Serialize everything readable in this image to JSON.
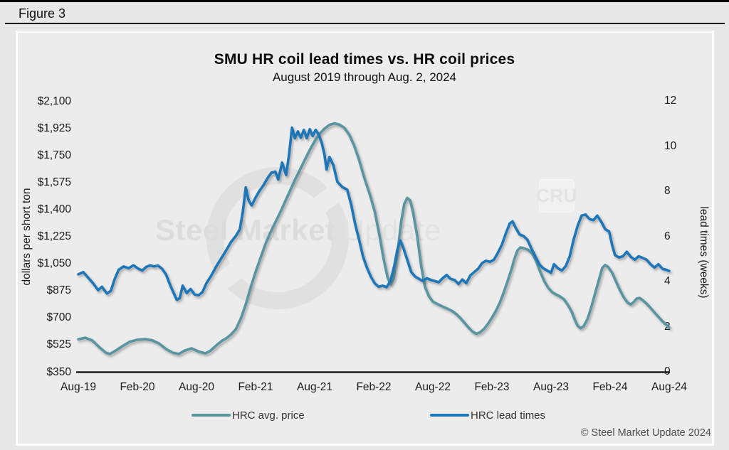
{
  "figure_label": "Figure 3",
  "title": "SMU HR coil lead times vs. HR coil prices",
  "subtitle": "August 2019 through Aug. 2, 2024",
  "copyright": "© Steel Market Update 2024",
  "watermark": {
    "part1": "Steel Market",
    "part2": "Update",
    "badge": "CRU"
  },
  "colors": {
    "price_line": "#5995a1",
    "lead_line": "#1d76b8",
    "axis_line": "#1a1a1a"
  },
  "chart_data": {
    "type": "line",
    "title": "SMU HR coil lead times vs. HR coil prices",
    "subtitle": "August 2019 through Aug. 2, 2024",
    "grid": false,
    "legend_position": "bottom",
    "x_axis": {
      "tick_labels": [
        "Aug-19",
        "Feb-20",
        "Aug-20",
        "Feb-21",
        "Aug-21",
        "Feb-22",
        "Aug-22",
        "Feb-23",
        "Aug-23",
        "Feb-24",
        "Aug-24"
      ],
      "unit": "month index from Aug-2019",
      "range": [
        0,
        60
      ]
    },
    "y_left": {
      "label": "dollars per short ton",
      "tick_labels": [
        "$2,100",
        "$1,925",
        "$1,750",
        "$1,575",
        "$1,400",
        "$1,225",
        "$1,050",
        "$875",
        "$700",
        "$525",
        "$350"
      ],
      "min": 350,
      "max": 2100
    },
    "y_right": {
      "label": "lead times (weeks)",
      "tick_labels": [
        "12",
        "10",
        "8",
        "6",
        "4",
        "2",
        "0"
      ],
      "min": 0,
      "max": 12
    },
    "legend": [
      {
        "name": "HRC avg. price",
        "color": "#5995a1",
        "axis": "left"
      },
      {
        "name": "HRC lead times",
        "color": "#1d76b8",
        "axis": "right"
      }
    ],
    "series": [
      {
        "name": "HRC avg. price",
        "axis": "left",
        "unit": "USD per short ton",
        "points": [
          [
            0,
            565
          ],
          [
            0.7,
            575
          ],
          [
            1.4,
            558
          ],
          [
            2.1,
            515
          ],
          [
            2.8,
            478
          ],
          [
            3.2,
            470
          ],
          [
            3.8,
            492
          ],
          [
            4.5,
            522
          ],
          [
            5.2,
            548
          ],
          [
            6,
            562
          ],
          [
            6.8,
            566
          ],
          [
            7.5,
            558
          ],
          [
            8.2,
            538
          ],
          [
            8.9,
            502
          ],
          [
            9.6,
            478
          ],
          [
            10.2,
            470
          ],
          [
            10.8,
            492
          ],
          [
            11.5,
            506
          ],
          [
            12.2,
            486
          ],
          [
            12.9,
            474
          ],
          [
            13.4,
            490
          ],
          [
            14,
            525
          ],
          [
            14.6,
            556
          ],
          [
            15,
            570
          ],
          [
            15.5,
            595
          ],
          [
            16,
            630
          ],
          [
            16.5,
            700
          ],
          [
            17,
            790
          ],
          [
            17.5,
            900
          ],
          [
            18,
            1000
          ],
          [
            18.5,
            1090
          ],
          [
            19,
            1180
          ],
          [
            19.5,
            1255
          ],
          [
            20,
            1320
          ],
          [
            20.5,
            1385
          ],
          [
            21,
            1455
          ],
          [
            21.5,
            1525
          ],
          [
            22,
            1595
          ],
          [
            22.5,
            1660
          ],
          [
            23,
            1725
          ],
          [
            23.5,
            1788
          ],
          [
            24,
            1845
          ],
          [
            24.5,
            1892
          ],
          [
            25,
            1926
          ],
          [
            25.5,
            1950
          ],
          [
            26,
            1960
          ],
          [
            26.5,
            1952
          ],
          [
            27,
            1932
          ],
          [
            27.5,
            1888
          ],
          [
            28,
            1818
          ],
          [
            28.5,
            1725
          ],
          [
            29,
            1615
          ],
          [
            29.6,
            1500
          ],
          [
            30.1,
            1390
          ],
          [
            30.6,
            1230
          ],
          [
            31,
            1085
          ],
          [
            31.4,
            965
          ],
          [
            31.7,
            920
          ],
          [
            32,
            955
          ],
          [
            32.4,
            1120
          ],
          [
            32.8,
            1330
          ],
          [
            33.1,
            1440
          ],
          [
            33.4,
            1478
          ],
          [
            33.7,
            1462
          ],
          [
            34,
            1382
          ],
          [
            34.4,
            1235
          ],
          [
            34.8,
            1045
          ],
          [
            35.2,
            905
          ],
          [
            35.6,
            842
          ],
          [
            36,
            808
          ],
          [
            36.5,
            792
          ],
          [
            37,
            776
          ],
          [
            37.5,
            762
          ],
          [
            38,
            746
          ],
          [
            38.4,
            726
          ],
          [
            38.8,
            702
          ],
          [
            39.2,
            672
          ],
          [
            39.6,
            642
          ],
          [
            40,
            616
          ],
          [
            40.4,
            601
          ],
          [
            40.8,
            610
          ],
          [
            41.2,
            632
          ],
          [
            41.6,
            665
          ],
          [
            42,
            705
          ],
          [
            42.4,
            748
          ],
          [
            42.8,
            802
          ],
          [
            43.2,
            868
          ],
          [
            43.6,
            942
          ],
          [
            44,
            1022
          ],
          [
            44.3,
            1088
          ],
          [
            44.6,
            1140
          ],
          [
            44.9,
            1158
          ],
          [
            45.3,
            1152
          ],
          [
            45.7,
            1142
          ],
          [
            46.1,
            1118
          ],
          [
            46.5,
            1068
          ],
          [
            46.9,
            1002
          ],
          [
            47.3,
            942
          ],
          [
            47.7,
            898
          ],
          [
            48.1,
            870
          ],
          [
            48.5,
            855
          ],
          [
            48.9,
            842
          ],
          [
            49.3,
            824
          ],
          [
            49.7,
            788
          ],
          [
            50.1,
            742
          ],
          [
            50.4,
            692
          ],
          [
            50.7,
            652
          ],
          [
            51,
            636
          ],
          [
            51.3,
            648
          ],
          [
            51.7,
            695
          ],
          [
            52.1,
            775
          ],
          [
            52.5,
            868
          ],
          [
            52.9,
            958
          ],
          [
            53.2,
            1025
          ],
          [
            53.5,
            1045
          ],
          [
            53.8,
            1032
          ],
          [
            54.2,
            995
          ],
          [
            54.6,
            938
          ],
          [
            55,
            882
          ],
          [
            55.4,
            833
          ],
          [
            55.8,
            800
          ],
          [
            56.1,
            790
          ],
          [
            56.4,
            806
          ],
          [
            56.7,
            828
          ],
          [
            57,
            832
          ],
          [
            57.3,
            818
          ],
          [
            57.7,
            795
          ],
          [
            58.1,
            768
          ],
          [
            58.5,
            738
          ],
          [
            58.9,
            710
          ],
          [
            59.3,
            682
          ],
          [
            59.7,
            658
          ],
          [
            60,
            640
          ]
        ]
      },
      {
        "name": "HRC lead times",
        "axis": "right",
        "unit": "weeks",
        "points": [
          [
            0,
            4.35
          ],
          [
            0.5,
            4.45
          ],
          [
            1,
            4.2
          ],
          [
            1.5,
            3.95
          ],
          [
            2,
            3.65
          ],
          [
            2.4,
            3.8
          ],
          [
            2.9,
            3.5
          ],
          [
            3.3,
            3.62
          ],
          [
            3.7,
            4.15
          ],
          [
            4.1,
            4.55
          ],
          [
            4.6,
            4.7
          ],
          [
            5.1,
            4.62
          ],
          [
            5.6,
            4.75
          ],
          [
            6.1,
            4.6
          ],
          [
            6.5,
            4.52
          ],
          [
            6.9,
            4.68
          ],
          [
            7.3,
            4.75
          ],
          [
            7.7,
            4.7
          ],
          [
            8.1,
            4.74
          ],
          [
            8.5,
            4.6
          ],
          [
            8.9,
            4.35
          ],
          [
            9.3,
            3.9
          ],
          [
            9.7,
            3.5
          ],
          [
            10,
            3.22
          ],
          [
            10.3,
            3.3
          ],
          [
            10.6,
            3.85
          ],
          [
            11,
            3.52
          ],
          [
            11.4,
            3.7
          ],
          [
            11.8,
            3.46
          ],
          [
            12.2,
            3.42
          ],
          [
            12.6,
            3.56
          ],
          [
            13,
            3.95
          ],
          [
            13.5,
            4.3
          ],
          [
            14,
            4.7
          ],
          [
            14.5,
            5.05
          ],
          [
            15,
            5.4
          ],
          [
            15.5,
            5.78
          ],
          [
            16,
            6.05
          ],
          [
            16.4,
            6.35
          ],
          [
            16.7,
            7.1
          ],
          [
            17,
            8.2
          ],
          [
            17.3,
            7.62
          ],
          [
            17.6,
            7.4
          ],
          [
            18,
            7.75
          ],
          [
            18.4,
            8.05
          ],
          [
            18.8,
            8.3
          ],
          [
            19.2,
            8.6
          ],
          [
            19.6,
            8.85
          ],
          [
            20,
            8.9
          ],
          [
            20.3,
            8.55
          ],
          [
            20.7,
            9.3
          ],
          [
            21.1,
            8.75
          ],
          [
            21.4,
            9.65
          ],
          [
            21.7,
            10.85
          ],
          [
            22,
            10.38
          ],
          [
            22.3,
            10.68
          ],
          [
            22.6,
            10.4
          ],
          [
            22.9,
            10.75
          ],
          [
            23.2,
            10.38
          ],
          [
            23.5,
            10.78
          ],
          [
            23.8,
            10.48
          ],
          [
            24.1,
            10.75
          ],
          [
            24.4,
            10.55
          ],
          [
            24.7,
            10.2
          ],
          [
            25,
            9.65
          ],
          [
            25.2,
            9.0
          ],
          [
            25.5,
            9.55
          ],
          [
            25.9,
            9.18
          ],
          [
            26.3,
            8.45
          ],
          [
            26.8,
            8.22
          ],
          [
            27.3,
            8.1
          ],
          [
            27.7,
            7.45
          ],
          [
            28.1,
            6.6
          ],
          [
            28.5,
            5.9
          ],
          [
            28.9,
            5.15
          ],
          [
            29.3,
            4.65
          ],
          [
            29.7,
            4.25
          ],
          [
            30.1,
            3.95
          ],
          [
            30.5,
            3.8
          ],
          [
            30.9,
            3.85
          ],
          [
            31.3,
            3.78
          ],
          [
            31.7,
            4.05
          ],
          [
            32.1,
            4.75
          ],
          [
            32.4,
            5.45
          ],
          [
            32.7,
            5.85
          ],
          [
            33,
            5.52
          ],
          [
            33.4,
            5.0
          ],
          [
            33.8,
            4.45
          ],
          [
            34.2,
            4.25
          ],
          [
            34.6,
            4.15
          ],
          [
            35,
            4.05
          ],
          [
            35.4,
            4.18
          ],
          [
            35.8,
            4.1
          ],
          [
            36.2,
            4.05
          ],
          [
            36.6,
            4.0
          ],
          [
            37,
            4.18
          ],
          [
            37.4,
            4.32
          ],
          [
            37.8,
            4.15
          ],
          [
            38.2,
            4.1
          ],
          [
            38.6,
            3.92
          ],
          [
            39,
            4.12
          ],
          [
            39.4,
            3.96
          ],
          [
            39.8,
            4.3
          ],
          [
            40.2,
            4.45
          ],
          [
            40.6,
            4.6
          ],
          [
            41,
            4.85
          ],
          [
            41.4,
            4.95
          ],
          [
            41.8,
            4.9
          ],
          [
            42.2,
            5.0
          ],
          [
            42.6,
            5.3
          ],
          [
            43,
            5.65
          ],
          [
            43.4,
            6.15
          ],
          [
            43.8,
            6.6
          ],
          [
            44.1,
            6.7
          ],
          [
            44.4,
            6.42
          ],
          [
            44.8,
            6.12
          ],
          [
            45.2,
            6.05
          ],
          [
            45.6,
            5.88
          ],
          [
            46,
            5.5
          ],
          [
            46.4,
            5.15
          ],
          [
            46.8,
            4.8
          ],
          [
            47.2,
            4.62
          ],
          [
            47.6,
            4.52
          ],
          [
            48,
            4.42
          ],
          [
            48.3,
            4.8
          ],
          [
            48.7,
            4.62
          ],
          [
            49.1,
            4.52
          ],
          [
            49.5,
            4.72
          ],
          [
            49.9,
            5.15
          ],
          [
            50.3,
            5.9
          ],
          [
            50.7,
            6.5
          ],
          [
            51.1,
            6.95
          ],
          [
            51.5,
            7.0
          ],
          [
            51.9,
            6.8
          ],
          [
            52.3,
            6.75
          ],
          [
            52.7,
            6.95
          ],
          [
            53.1,
            6.68
          ],
          [
            53.5,
            6.35
          ],
          [
            53.9,
            6.25
          ],
          [
            54.2,
            5.65
          ],
          [
            54.5,
            5.2
          ],
          [
            54.9,
            5.1
          ],
          [
            55.3,
            5.15
          ],
          [
            55.7,
            5.35
          ],
          [
            56.1,
            5.12
          ],
          [
            56.5,
            5.0
          ],
          [
            56.9,
            5.15
          ],
          [
            57.3,
            5.08
          ],
          [
            57.7,
            5.0
          ],
          [
            58.1,
            4.8
          ],
          [
            58.5,
            4.65
          ],
          [
            58.9,
            4.8
          ],
          [
            59.3,
            4.6
          ],
          [
            59.7,
            4.55
          ],
          [
            60,
            4.5
          ]
        ]
      }
    ]
  }
}
